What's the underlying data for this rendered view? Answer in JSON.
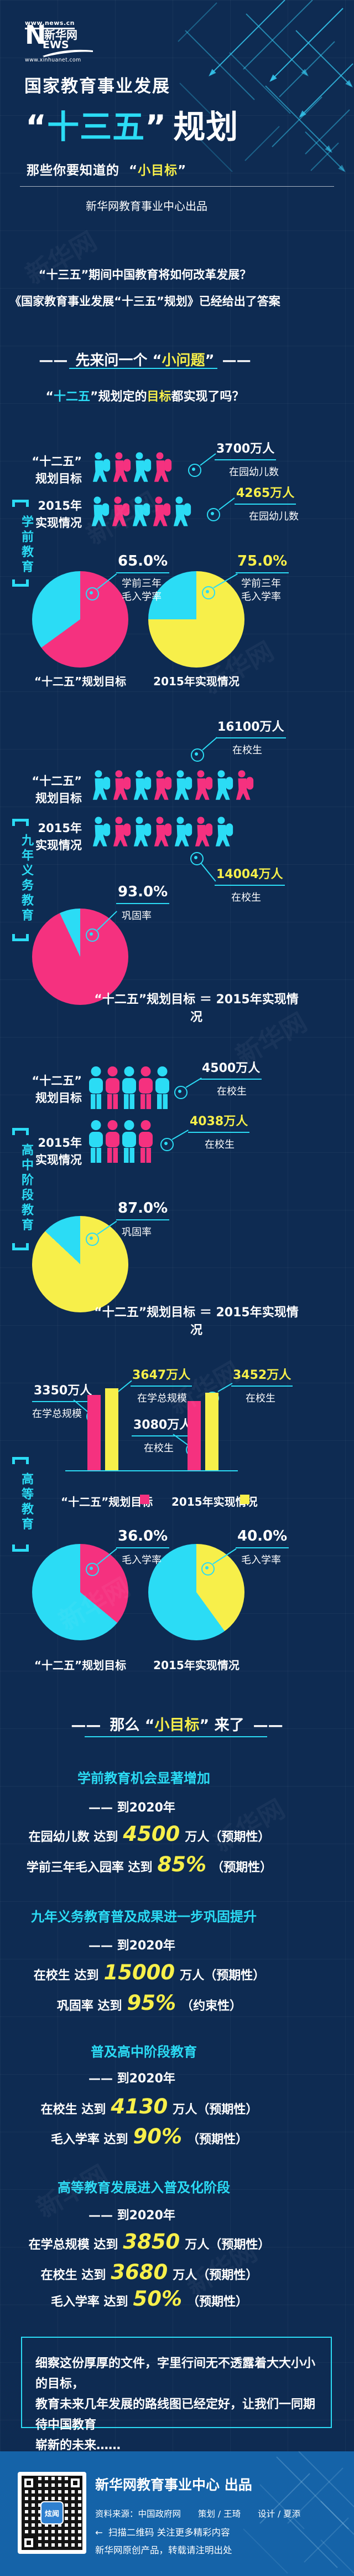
{
  "colors": {
    "bg": "#0e2b52",
    "footer_bg": "#1563a8",
    "cyan": "#2bdcf5",
    "pink": "#f5317f",
    "yellow": "#f7ef4a"
  },
  "page": {
    "watermark": "新华网"
  },
  "header": {
    "logo_url_top": "www.news.cn",
    "logo_n": "N",
    "logo_ews": "EWS",
    "logo_brand": "新华网",
    "logo_url_bottom": "www.xinhuanet.com",
    "title_line1": "国家教育事业发展",
    "quote_open": "“",
    "title_accent": "十三五",
    "quote_close": "”",
    "title_tail": "规划",
    "subtitle_prefix": "那些你要知道的",
    "subtitle_accent": "小目标",
    "byline": "新华网教育事业中心出品"
  },
  "intro": {
    "q1": "“十三五”期间中国教育将如何改革发展？",
    "q2": "《国家教育事业发展“十三五”规划》已经给出了答案",
    "dash": "——",
    "ask_prefix": "先来问一个",
    "ask_accent": "小问题",
    "q3_accent": "十二五",
    "q3_mid": "规划定的",
    "q3_hl": "目标",
    "q3_tail": "都实现了吗？"
  },
  "labels": {
    "plan": "“十二五”",
    "plan2": "规划目标",
    "y2015": "2015年",
    "y2015b": "实现情况",
    "pie_label_plan": "“十二五”规划目标",
    "pie_label_2015": "2015年实现情况",
    "equation": "“十二五”规划目标 ＝ 2015年实现情况"
  },
  "sections": {
    "preschool": {
      "name": "学前教育",
      "row1": {
        "value": "3700万人",
        "caption": "在园幼儿数",
        "icons": 4
      },
      "row2": {
        "value": "4265万人",
        "caption": "在园幼儿数",
        "icons": 5
      },
      "pie1": {
        "pct": "65.0%",
        "value": 65,
        "color": "pink",
        "cap1": "学前三年",
        "cap2": "毛入学率"
      },
      "pie2": {
        "pct": "75.0%",
        "value": 75,
        "color": "yellow",
        "cap1": "学前三年",
        "cap2": "毛入学率"
      }
    },
    "nineyear": {
      "name": "九年义务教育",
      "row1": {
        "value": "16100万人",
        "caption": "在校生",
        "icons": 8
      },
      "row2": {
        "value": "14004万人",
        "caption": "在校生",
        "icons": 7
      },
      "pie1": {
        "pct": "93.0%",
        "value": 93,
        "color": "pink",
        "cap1": "巩固率"
      }
    },
    "highschool": {
      "name": "高中阶段教育",
      "row1": {
        "value": "4500万人",
        "caption": "在校生",
        "icons": 5
      },
      "row2": {
        "value": "4038万人",
        "caption": "在校生",
        "icons": 4
      },
      "pie1": {
        "pct": "87.0%",
        "value": 87,
        "color": "yellow",
        "cap1": "巩固率"
      }
    },
    "higher": {
      "name": "高等教育",
      "bar1": {
        "value": "3350万人",
        "caption": "在学总规模",
        "num": 3350
      },
      "bar2": {
        "value": "3647万人",
        "caption": "在学总规模",
        "num": 3647
      },
      "bar3": {
        "value": "3080万人",
        "caption": "在校生",
        "num": 3080
      },
      "bar4": {
        "value": "3452万人",
        "caption": "在校生",
        "num": 3452
      },
      "pie1": {
        "pct": "36.0%",
        "value": 36,
        "color": "pink",
        "cap1": "毛入学率"
      },
      "pie2": {
        "pct": "40.0%",
        "value": 40,
        "color": "yellow",
        "cap1": "毛入学率"
      }
    }
  },
  "goals": {
    "dash": "——",
    "head_prefix": "那么",
    "head_accent": "小目标",
    "head_tail": "来了",
    "groups": [
      {
        "title": "学前教育机会显著增加",
        "when": "—— 到2020年",
        "items": [
          {
            "pre": "在园幼儿数 达到",
            "num": "4500",
            "post": "万人（预期性）"
          },
          {
            "pre": "学前三年毛入园率 达到",
            "num": "85%",
            "post": "（预期性）"
          }
        ]
      },
      {
        "title": "九年义务教育普及成果进一步巩固提升",
        "when": "—— 到2020年",
        "items": [
          {
            "pre": "在校生 达到",
            "num": "15000",
            "post": "万人（预期性）"
          },
          {
            "pre": "巩固率 达到",
            "num": "95%",
            "post": "（约束性）"
          }
        ]
      },
      {
        "title": "普及高中阶段教育",
        "when": "—— 到2020年",
        "items": [
          {
            "pre": "在校生 达到",
            "num": "4130",
            "post": "万人（预期性）"
          },
          {
            "pre": "毛入学率 达到",
            "num": "90%",
            "post": "（预期性）"
          }
        ]
      },
      {
        "title": "高等教育发展进入普及化阶段",
        "when": "—— 到2020年",
        "items": [
          {
            "pre": "在学总规模 达到",
            "num": "3850",
            "post": "万人（预期性）"
          },
          {
            "pre": "在校生 达到",
            "num": "3680",
            "post": "万人（预期性）"
          },
          {
            "pre": "毛入学率 达到",
            "num": "50%",
            "post": "（预期性）"
          }
        ]
      }
    ],
    "closing_lines": [
      "细察这份厚厚的文件，字里行间无不透露着大大小小的目标，",
      "教育未来几年发展的路线图已经定好，让我们一同期待中国教育",
      "崭新的未来……"
    ]
  },
  "footer": {
    "title": "新华网教育事业中心 出品",
    "credits": "资料来源：中国政府网　　策划 / 王琦　　设计 / 夏添",
    "arrow": "←",
    "scan": "扫描二维码 关注更多精彩内容",
    "copyright": "新华网原创产品，转载请注明出处",
    "qr_logo": "炫闻"
  },
  "chart_data": [
    {
      "type": "bar",
      "subtype": "pictograph",
      "section": "学前教育",
      "unit": "万人",
      "metric": "在园幼儿数",
      "categories": [
        "“十二五”规划目标",
        "2015年实现情况"
      ],
      "values": [
        3700,
        4265
      ],
      "icons": [
        4,
        5
      ]
    },
    {
      "type": "pie",
      "section": "学前教育",
      "metric": "学前三年毛入学率",
      "slices": [
        {
          "name": "“十二五”规划目标",
          "value": 65.0
        },
        {
          "name": "2015年实现情况",
          "value": 75.0
        }
      ]
    },
    {
      "type": "bar",
      "subtype": "pictograph",
      "section": "九年义务教育",
      "unit": "万人",
      "metric": "在校生",
      "categories": [
        "“十二五”规划目标",
        "2015年实现情况"
      ],
      "values": [
        16100,
        14004
      ],
      "icons": [
        8,
        7
      ]
    },
    {
      "type": "pie",
      "section": "九年义务教育",
      "metric": "巩固率",
      "slices": [
        {
          "name": "“十二五”规划目标 ＝ 2015年实现情况",
          "value": 93.0
        }
      ]
    },
    {
      "type": "bar",
      "subtype": "pictograph",
      "section": "高中阶段教育",
      "unit": "万人",
      "metric": "在校生",
      "categories": [
        "“十二五”规划目标",
        "2015年实现情况"
      ],
      "values": [
        4500,
        4038
      ],
      "icons": [
        5,
        4
      ]
    },
    {
      "type": "pie",
      "section": "高中阶段教育",
      "metric": "巩固率",
      "slices": [
        {
          "name": "“十二五”规划目标 ＝ 2015年实现情况",
          "value": 87.0
        }
      ]
    },
    {
      "type": "bar",
      "section": "高等教育",
      "unit": "万人",
      "categories": [
        "在学总规模",
        "在校生"
      ],
      "series": [
        {
          "name": "“十二五”规划目标",
          "values": [
            3350,
            3080
          ]
        },
        {
          "name": "2015年实现情况",
          "values": [
            3647,
            3452
          ]
        }
      ]
    },
    {
      "type": "pie",
      "section": "高等教育",
      "metric": "毛入学率",
      "slices": [
        {
          "name": "“十二五”规划目标",
          "value": 36.0
        },
        {
          "name": "2015年实现情况",
          "value": 40.0
        }
      ]
    }
  ]
}
